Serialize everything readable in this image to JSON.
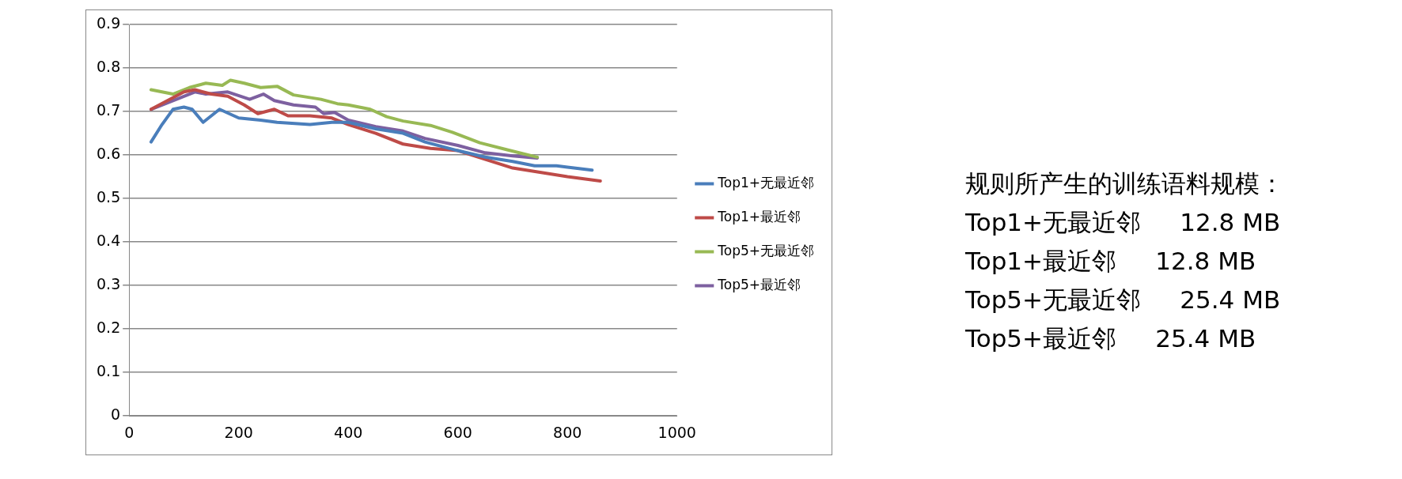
{
  "chart_data": {
    "type": "line",
    "xlim": [
      0,
      1000
    ],
    "xticks": [
      0,
      200,
      400,
      600,
      800,
      1000
    ],
    "ylim": [
      0,
      0.9
    ],
    "yticks": [
      0,
      0.1,
      0.2,
      0.3,
      0.4,
      0.5,
      0.6,
      0.7,
      0.8,
      0.9
    ],
    "grid": "y",
    "legend": "right",
    "marker": "none",
    "line_style": "solid",
    "series": [
      {
        "name": "Top1+无最近邻",
        "color": "#4a7ebb",
        "x": [
          40,
          60,
          80,
          100,
          115,
          135,
          165,
          200,
          240,
          270,
          330,
          370,
          400,
          450,
          500,
          540,
          600,
          650,
          700,
          740,
          780,
          800,
          845
        ],
        "values": [
          0.63,
          0.67,
          0.705,
          0.71,
          0.705,
          0.675,
          0.705,
          0.685,
          0.68,
          0.675,
          0.67,
          0.675,
          0.675,
          0.66,
          0.65,
          0.63,
          0.61,
          0.595,
          0.585,
          0.575,
          0.575,
          0.572,
          0.565
        ]
      },
      {
        "name": "Top1+最近邻",
        "color": "#be4b48",
        "x": [
          40,
          70,
          100,
          120,
          150,
          180,
          210,
          235,
          265,
          290,
          330,
          370,
          400,
          450,
          500,
          550,
          600,
          650,
          700,
          750,
          800,
          860
        ],
        "values": [
          0.705,
          0.725,
          0.745,
          0.75,
          0.74,
          0.735,
          0.715,
          0.695,
          0.705,
          0.69,
          0.69,
          0.685,
          0.67,
          0.65,
          0.625,
          0.615,
          0.61,
          0.59,
          0.57,
          0.56,
          0.55,
          0.54
        ]
      },
      {
        "name": "Top5+无最近邻",
        "color": "#98b954",
        "x": [
          40,
          80,
          110,
          140,
          170,
          185,
          210,
          240,
          270,
          300,
          350,
          380,
          400,
          440,
          470,
          500,
          550,
          590,
          640,
          690,
          745
        ],
        "values": [
          0.75,
          0.74,
          0.755,
          0.765,
          0.76,
          0.772,
          0.765,
          0.755,
          0.758,
          0.738,
          0.728,
          0.718,
          0.715,
          0.705,
          0.688,
          0.678,
          0.668,
          0.652,
          0.628,
          0.612,
          0.595
        ]
      },
      {
        "name": "Top5+最近邻",
        "color": "#7d60a0",
        "x": [
          40,
          80,
          120,
          140,
          180,
          220,
          245,
          265,
          300,
          340,
          355,
          375,
          400,
          450,
          500,
          540,
          600,
          650,
          700,
          745
        ],
        "values": [
          0.705,
          0.725,
          0.745,
          0.74,
          0.745,
          0.728,
          0.74,
          0.725,
          0.715,
          0.71,
          0.695,
          0.698,
          0.68,
          0.665,
          0.655,
          0.638,
          0.622,
          0.605,
          0.598,
          0.593
        ]
      }
    ],
    "annotations": [
      "规则所产生的训练语料规模：",
      "Top1+无最近邻     12.8 MB",
      "Top1+最近邻     12.8 MB",
      "Top5+无最近邻     25.4 MB",
      "Top5+最近邻     25.4 MB"
    ]
  }
}
